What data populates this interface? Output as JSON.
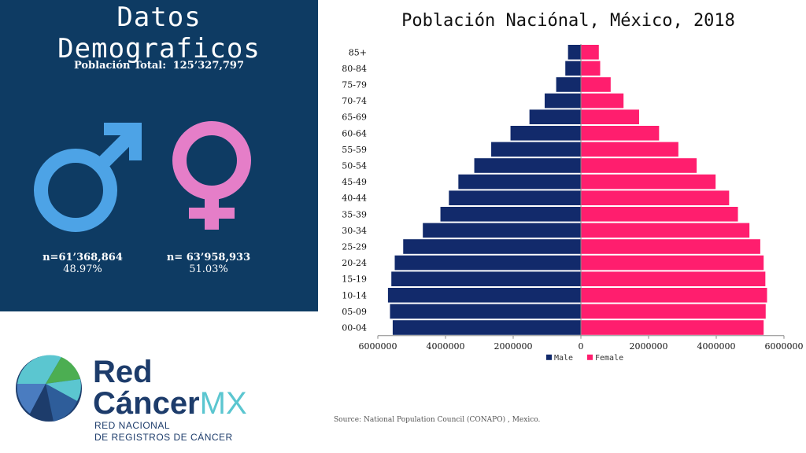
{
  "left": {
    "title_line1": "Datos",
    "title_line2": "Demograficos",
    "total_label": "Población Total:",
    "total_value": "125’327,797",
    "male": {
      "n": "n=61’368,864",
      "pct": "48.97%",
      "color": "#4da3e6"
    },
    "female": {
      "n": "n= 63’958,933",
      "pct": "51.03%",
      "color": "#e57ec8"
    }
  },
  "chart_data": {
    "type": "bar",
    "title": "Población Naciónal, México, 2018",
    "orientation": "horizontal-population-pyramid",
    "categories": [
      "00-04",
      "05-09",
      "10-14",
      "15-19",
      "20-24",
      "25-29",
      "30-34",
      "35-39",
      "40-44",
      "45-49",
      "50-54",
      "55-59",
      "60-64",
      "65-69",
      "70-74",
      "75-79",
      "80-84",
      "85+"
    ],
    "series": [
      {
        "name": "Male",
        "color": "#122a6b",
        "values": [
          5560000,
          5640000,
          5700000,
          5600000,
          5500000,
          5250000,
          4670000,
          4150000,
          3900000,
          3620000,
          3150000,
          2650000,
          2080000,
          1520000,
          1070000,
          730000,
          460000,
          380000
        ]
      },
      {
        "name": "Female",
        "color": "#ff1e6e",
        "values": [
          5400000,
          5460000,
          5500000,
          5450000,
          5400000,
          5300000,
          4980000,
          4640000,
          4380000,
          3980000,
          3420000,
          2880000,
          2310000,
          1720000,
          1260000,
          880000,
          570000,
          530000
        ]
      }
    ],
    "xlim": [
      -6000000,
      6000000
    ],
    "xticks": [
      "6000000",
      "4000000",
      "2000000",
      "0",
      "2000000",
      "4000000",
      "6000000"
    ],
    "legend_position": "bottom",
    "grid": false
  },
  "source": "Source: National Population Council (CONAPO) , Mexico.",
  "logo": {
    "line1": "Red",
    "line2": "Cáncer",
    "line2_accent": "MX",
    "sub1": "RED NACIONAL",
    "sub2": "DE REGISTROS DE CÁNCER"
  }
}
